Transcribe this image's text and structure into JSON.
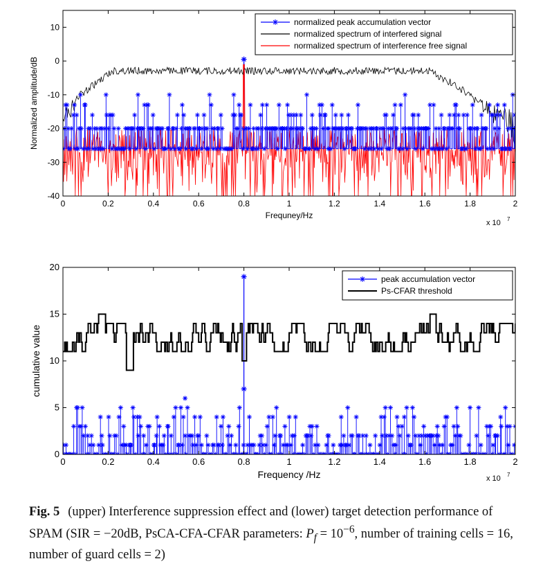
{
  "chart_data": [
    {
      "type": "line",
      "panel": "upper",
      "xlabel": "Frequney/Hz",
      "ylabel": "Normalized amplitude/dB",
      "x_exponent": "x 10",
      "x_exponent_power": "7",
      "xlim": [
        0,
        20000000.0
      ],
      "ylim": [
        -40,
        15
      ],
      "xticks": [
        0,
        0.2,
        0.4,
        0.6,
        0.8,
        1,
        1.2,
        1.4,
        1.6,
        1.8,
        2
      ],
      "xtick_labels": [
        "0",
        "0.2",
        "0.4",
        "0.6",
        "0.8",
        "1",
        "1.2",
        "1.4",
        "1.6",
        "1.8",
        "2"
      ],
      "yticks": [
        -40,
        -30,
        -20,
        -10,
        0,
        10
      ],
      "ytick_labels": [
        "-40",
        "-30",
        "-20",
        "-10",
        "0",
        "10"
      ],
      "legend_position": "top-right",
      "series": [
        {
          "name": "normalized peak accumulation vector",
          "color": "#0000ff",
          "style": "stem-star",
          "base": -26,
          "levels": [
            -26,
            -20,
            -16,
            -13,
            -10
          ],
          "peak_x": 0.8,
          "peak_y": 0.5
        },
        {
          "name": "normalized spectrum of interfered signal",
          "color": "#000000",
          "style": "line",
          "plateau": -2,
          "edge_low": -14
        },
        {
          "name": "normalized spectrum of interference free signal",
          "color": "#ff0000",
          "style": "line",
          "upper": -20,
          "lower": -40,
          "peak_x": 0.8,
          "peak_y": -1
        }
      ]
    },
    {
      "type": "line",
      "panel": "lower",
      "xlabel": "Frequency /Hz",
      "ylabel": "cumulative value",
      "x_exponent": "x 10",
      "x_exponent_power": "7",
      "xlim": [
        0,
        20000000.0
      ],
      "ylim": [
        0,
        20
      ],
      "xticks": [
        0,
        0.2,
        0.4,
        0.6,
        0.8,
        1,
        1.2,
        1.4,
        1.6,
        1.8,
        2
      ],
      "xtick_labels": [
        "0",
        "0.2",
        "0.4",
        "0.6",
        "0.8",
        "1",
        "1.2",
        "1.4",
        "1.6",
        "1.8",
        "2"
      ],
      "yticks": [
        0,
        5,
        10,
        15,
        20
      ],
      "ytick_labels": [
        "0",
        "5",
        "10",
        "15",
        "20"
      ],
      "legend_position": "top-right",
      "series": [
        {
          "name": "peak accumulation vector",
          "color": "#0000ff",
          "style": "stem-star",
          "levels": [
            0,
            1,
            2,
            3,
            4,
            5
          ],
          "peak_x": 0.8,
          "peak_y": 19,
          "secondary_y": 7
        },
        {
          "name": "Ps-CFAR threshold",
          "color": "#000000",
          "style": "step",
          "typical": [
            11,
            14
          ],
          "min": 9,
          "max": 15
        }
      ]
    }
  ],
  "caption": {
    "label": "Fig. 5",
    "text_part1": "(upper) Interference suppression effect and (lower) target detection performance of SPAM (SIR = −20dB, PsCA-CFA-CFAR parameters:",
    "pf_symbol": "P",
    "pf_subscript": "f",
    "pf_equals": " = 10",
    "pf_exponent": "−6",
    "text_part2": ", number of training cells = 16, number of guard cells = 2)"
  }
}
